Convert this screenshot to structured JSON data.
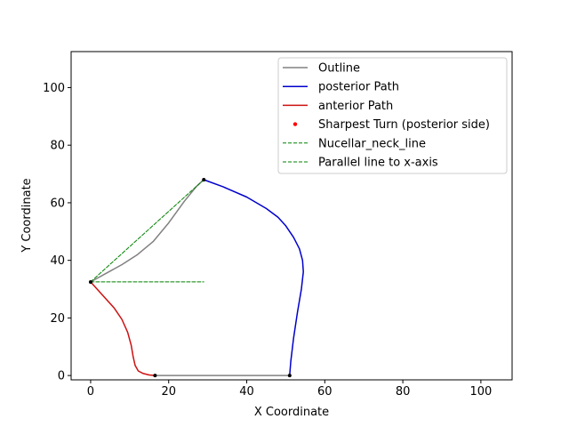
{
  "chart_data": {
    "type": "line",
    "title": "",
    "xlabel": "X Coordinate",
    "ylabel": "Y Coordinate",
    "xlim": [
      -5,
      108
    ],
    "ylim": [
      -1.5,
      112.5
    ],
    "xticks": [
      0,
      20,
      40,
      60,
      80,
      100
    ],
    "yticks": [
      0,
      20,
      40,
      60,
      80,
      100
    ],
    "grid": false,
    "legend_position": "top-right",
    "series": [
      {
        "name": "Outline",
        "kind": "line",
        "color": "#808080",
        "x": [
          0,
          4,
          8,
          12,
          16,
          20,
          24,
          27,
          29
        ],
        "y": [
          32.5,
          35.5,
          38.5,
          42,
          46.5,
          53,
          60.5,
          65.5,
          68
        ]
      },
      {
        "name": "Outline-bottom",
        "kind": "line",
        "color": "#808080",
        "legend": false,
        "x": [
          16.5,
          51
        ],
        "y": [
          0,
          0
        ]
      },
      {
        "name": "posterior Path",
        "kind": "line",
        "color": "#0000cc",
        "x": [
          29,
          34,
          40,
          45,
          48,
          50,
          52,
          53.5,
          54.3,
          54.5,
          54,
          53,
          52,
          51.3,
          51
        ],
        "y": [
          68,
          65.5,
          62,
          58,
          55,
          52,
          48,
          44,
          40,
          36,
          30,
          22,
          13,
          5,
          0
        ]
      },
      {
        "name": "anterior Path",
        "kind": "line",
        "color": "#cc1111",
        "x": [
          0,
          3,
          6,
          8,
          9.5,
          10.4,
          10.9,
          11.4,
          12.2,
          13.5,
          15,
          16.5
        ],
        "y": [
          32.5,
          28,
          23.5,
          19.5,
          15,
          10.5,
          6.5,
          3.5,
          1.6,
          0.7,
          0.2,
          0
        ]
      },
      {
        "name": "Sharpest Turn (posterior side)",
        "kind": "scatter",
        "color": "#ff0000",
        "x": [],
        "y": []
      },
      {
        "name": "Nucellar_neck_line",
        "kind": "dashed",
        "color": "#008000",
        "x": [
          0,
          29
        ],
        "y": [
          32.5,
          68
        ]
      },
      {
        "name": "Parallel line to x-axis",
        "kind": "dashed",
        "color": "#008000",
        "x": [
          0,
          29
        ],
        "y": [
          32.5,
          32.5
        ]
      }
    ],
    "points": {
      "color": "#000000",
      "x": [
        0,
        29,
        16.5,
        51
      ],
      "y": [
        32.5,
        68,
        0,
        0
      ]
    }
  }
}
